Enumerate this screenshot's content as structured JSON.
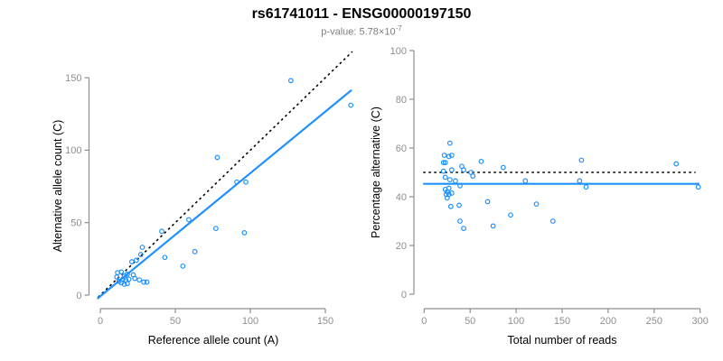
{
  "header": {
    "title": "rs61741011 - ENSG00000197150",
    "subtitle_prefix": "p-value: 5.78×10",
    "subtitle_exponent": "-7"
  },
  "colors": {
    "accent_blue": "#1E90FF",
    "axis_gray": "#8E8E8E",
    "tick_label_gray": "#8E8E8E",
    "dotted_black": "#000000",
    "subtitle_gray": "#7F7F7F",
    "title_black": "#000000"
  },
  "chart_data": [
    {
      "type": "scatter",
      "name": "allele-counts",
      "xlabel": "Reference allele count (A)",
      "ylabel": "Alternative allele count (C)",
      "xticks": [
        0,
        50,
        100,
        150
      ],
      "yticks": [
        0,
        50,
        100,
        150
      ],
      "xlim": [
        0,
        168
      ],
      "ylim": [
        0,
        168
      ],
      "grid": false,
      "legend": "none",
      "points": [
        [
          11.5,
          15.5
        ],
        [
          14,
          16
        ],
        [
          11,
          12.5
        ],
        [
          16,
          13
        ],
        [
          18,
          14.5
        ],
        [
          15,
          11
        ],
        [
          17,
          10.5
        ],
        [
          19,
          11
        ],
        [
          12.5,
          9.5
        ],
        [
          14,
          8.5
        ],
        [
          16,
          7.5
        ],
        [
          18,
          8
        ],
        [
          22,
          14
        ],
        [
          23,
          11.5
        ],
        [
          26,
          10.5
        ],
        [
          29,
          9
        ],
        [
          31,
          9
        ],
        [
          21,
          23
        ],
        [
          24,
          24
        ],
        [
          27,
          28
        ],
        [
          28,
          33
        ],
        [
          41,
          44
        ],
        [
          43,
          26
        ],
        [
          55,
          20
        ],
        [
          59,
          52
        ],
        [
          63,
          30
        ],
        [
          77,
          46
        ],
        [
          96,
          43
        ],
        [
          78,
          95
        ],
        [
          91,
          78
        ],
        [
          97,
          78
        ],
        [
          127,
          148
        ],
        [
          167,
          131
        ]
      ],
      "fit_line": {
        "x1": -2,
        "y1": -2.5,
        "x2": 167.5,
        "y2": 141.5,
        "style": "solid"
      },
      "dotted_line": {
        "x1": -1.5,
        "y1": -1.5,
        "x2": 168,
        "y2": 168,
        "style": "dotted"
      }
    },
    {
      "type": "scatter",
      "name": "percentage-vs-reads",
      "xlabel": "Total number of reads",
      "ylabel": "Percentage alternative (C)",
      "xticks": [
        0,
        50,
        100,
        150,
        200,
        250,
        300
      ],
      "yticks": [
        0,
        20,
        40,
        60,
        80,
        100
      ],
      "xlim": [
        0,
        300
      ],
      "ylim": [
        0,
        100
      ],
      "grid": false,
      "legend": "none",
      "points": [
        [
          28,
          62
        ],
        [
          22,
          57
        ],
        [
          27,
          56.5
        ],
        [
          30,
          57
        ],
        [
          21,
          54
        ],
        [
          23,
          54
        ],
        [
          62,
          54.5
        ],
        [
          171,
          55
        ],
        [
          274,
          53.5
        ],
        [
          86,
          52
        ],
        [
          41,
          52.5
        ],
        [
          43,
          51
        ],
        [
          30,
          51
        ],
        [
          21,
          50.5
        ],
        [
          51,
          50
        ],
        [
          53,
          48.5
        ],
        [
          23,
          48
        ],
        [
          28,
          47
        ],
        [
          34,
          46.5
        ],
        [
          110,
          46.5
        ],
        [
          169,
          46.5
        ],
        [
          39,
          44.5
        ],
        [
          27,
          43.5
        ],
        [
          23,
          43
        ],
        [
          25,
          42
        ],
        [
          24,
          41
        ],
        [
          27,
          41
        ],
        [
          30,
          41.5
        ],
        [
          25,
          39.5
        ],
        [
          298,
          44
        ],
        [
          176,
          44
        ],
        [
          69,
          38
        ],
        [
          122,
          37
        ],
        [
          29,
          36
        ],
        [
          38,
          36.5
        ],
        [
          94,
          32.5
        ],
        [
          140,
          30
        ],
        [
          39,
          30
        ],
        [
          43,
          27
        ],
        [
          75,
          28
        ]
      ],
      "fit_line": {
        "x1": -1,
        "y1": 45.3,
        "x2": 299,
        "y2": 45.3,
        "style": "solid"
      },
      "dotted_line": {
        "x1": -1,
        "y1": 50,
        "x2": 295,
        "y2": 50,
        "style": "dotted"
      }
    }
  ]
}
